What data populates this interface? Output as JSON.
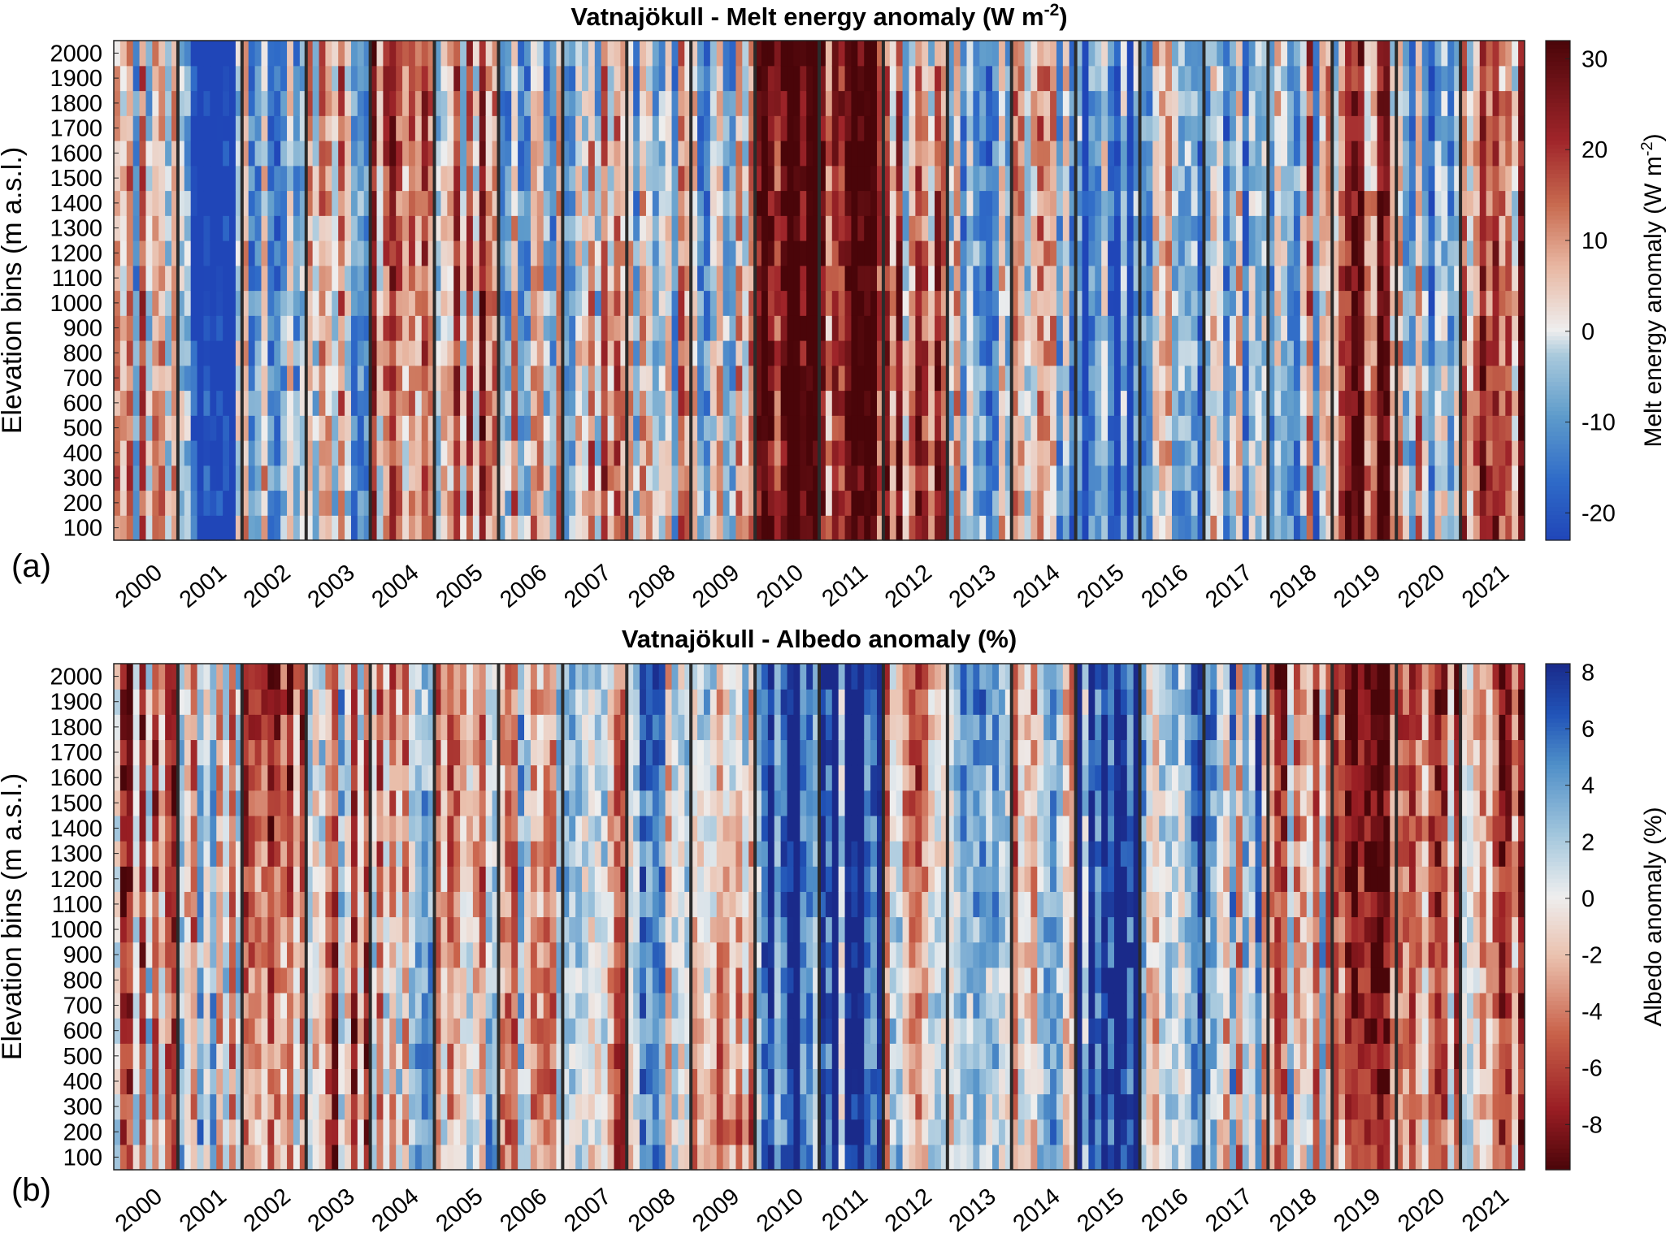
{
  "chart_data": [
    {
      "type": "heatmap",
      "panel_label": "(a)",
      "title_prefix": "Vatnajökull - Melt energy anomaly (W m",
      "title_sup": "-2",
      "title_suffix": ")",
      "ylabel": "Elevation bins (m a.s.l.)",
      "colorbar_label_prefix": "Melt energy anomaly (W m",
      "colorbar_label_sup": "-2",
      "colorbar_label_suffix": ")",
      "years": [
        "2000",
        "2001",
        "2002",
        "2003",
        "2004",
        "2005",
        "2006",
        "2007",
        "2008",
        "2009",
        "2010",
        "2011",
        "2012",
        "2013",
        "2014",
        "2015",
        "2016",
        "2017",
        "2018",
        "2019",
        "2020",
        "2021"
      ],
      "elevations": [
        "100",
        "200",
        "300",
        "400",
        "500",
        "600",
        "700",
        "800",
        "900",
        "1000",
        "1100",
        "1200",
        "1300",
        "1400",
        "1500",
        "1600",
        "1700",
        "1800",
        "1900",
        "2000"
      ],
      "time_steps_per_year": 10,
      "colorbar_ticks": [
        30,
        20,
        10,
        0,
        -10,
        -20
      ],
      "clim": [
        -23,
        32
      ],
      "colormap": "blue-white-red (low = #2045b4, zero = #eeeeee, high = #4a0509)",
      "values_note": "cell values approximated by a 22 x 10 x 20 grid of anomalies read from the image",
      "year_pattern_0to1": [
        [
          0.55,
          0.5,
          0.45
        ],
        [
          0.2,
          0.15,
          0.1
        ],
        [
          0.45,
          0.4,
          0.35
        ],
        [
          0.4,
          0.45,
          0.5
        ],
        [
          0.55,
          0.6,
          0.65
        ],
        [
          0.65,
          0.62,
          0.6
        ],
        [
          0.55,
          0.45,
          0.35
        ],
        [
          0.6,
          0.5,
          0.45
        ],
        [
          0.5,
          0.45,
          0.4
        ],
        [
          0.45,
          0.4,
          0.35
        ],
        [
          0.9,
          0.92,
          0.95
        ],
        [
          0.8,
          0.85,
          0.9
        ],
        [
          0.7,
          0.6,
          0.45
        ],
        [
          0.35,
          0.3,
          0.3
        ],
        [
          0.35,
          0.4,
          0.45
        ],
        [
          0.15,
          0.15,
          0.2
        ],
        [
          0.3,
          0.35,
          0.4
        ],
        [
          0.35,
          0.3,
          0.25
        ],
        [
          0.4,
          0.45,
          0.5
        ],
        [
          0.8,
          0.7,
          0.6
        ],
        [
          0.5,
          0.4,
          0.35
        ],
        [
          0.75,
          0.7,
          0.6
        ]
      ]
    },
    {
      "type": "heatmap",
      "panel_label": "(b)",
      "title_prefix": "Vatnajökull - Albedo anomaly (%)",
      "title_sup": "",
      "title_suffix": "",
      "ylabel": "Elevation bins (m a.s.l.)",
      "colorbar_label_prefix": "Albedo anomaly (%)",
      "colorbar_label_sup": "",
      "colorbar_label_suffix": "",
      "years": [
        "2000",
        "2001",
        "2002",
        "2003",
        "2004",
        "2005",
        "2006",
        "2007",
        "2008",
        "2009",
        "2010",
        "2011",
        "2012",
        "2013",
        "2014",
        "2015",
        "2016",
        "2017",
        "2018",
        "2019",
        "2020",
        "2021"
      ],
      "elevations": [
        "100",
        "200",
        "300",
        "400",
        "500",
        "600",
        "700",
        "800",
        "900",
        "1000",
        "1100",
        "1200",
        "1300",
        "1400",
        "1500",
        "1600",
        "1700",
        "1800",
        "1900",
        "2000"
      ],
      "time_steps_per_year": 10,
      "colorbar_ticks": [
        8,
        6,
        4,
        2,
        0,
        -2,
        -4,
        -6,
        -8
      ],
      "clim": [
        -9.6,
        8.3
      ],
      "colormap": "red-white-blue (low = #4a0509, zero = #eeeeee, high = #1a2a8a)",
      "values_note": "cell values approximated by a 22 x 10 x 20 grid of anomalies read from the image",
      "year_pattern_0to1": [
        [
          0.45,
          0.4,
          0.35
        ],
        [
          0.55,
          0.5,
          0.5
        ],
        [
          0.55,
          0.45,
          0.3
        ],
        [
          0.35,
          0.4,
          0.5
        ],
        [
          0.6,
          0.55,
          0.45
        ],
        [
          0.55,
          0.4,
          0.35
        ],
        [
          0.45,
          0.5,
          0.55
        ],
        [
          0.4,
          0.45,
          0.5
        ],
        [
          0.55,
          0.6,
          0.65
        ],
        [
          0.45,
          0.55,
          0.65
        ],
        [
          0.85,
          0.9,
          0.92
        ],
        [
          0.8,
          0.85,
          0.88
        ],
        [
          0.55,
          0.5,
          0.4
        ],
        [
          0.5,
          0.6,
          0.7
        ],
        [
          0.55,
          0.5,
          0.45
        ],
        [
          0.9,
          0.9,
          0.85
        ],
        [
          0.6,
          0.65,
          0.7
        ],
        [
          0.55,
          0.6,
          0.7
        ],
        [
          0.55,
          0.45,
          0.35
        ],
        [
          0.3,
          0.2,
          0.15
        ],
        [
          0.45,
          0.4,
          0.35
        ],
        [
          0.35,
          0.3,
          0.25
        ]
      ]
    }
  ]
}
